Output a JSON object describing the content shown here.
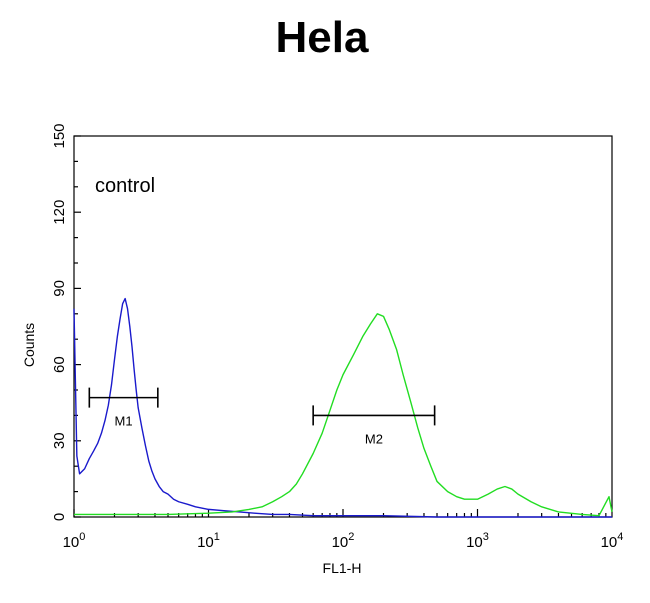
{
  "chart_data": {
    "type": "line",
    "title": "Hela",
    "xlabel": "FL1-H",
    "ylabel": "Counts",
    "x_scale": "log",
    "xlim": [
      1,
      10000
    ],
    "ylim": [
      0,
      150
    ],
    "x_ticks": [
      {
        "value": 1,
        "base": "10",
        "exp": "0"
      },
      {
        "value": 10,
        "base": "10",
        "exp": "1"
      },
      {
        "value": 100,
        "base": "10",
        "exp": "2"
      },
      {
        "value": 1000,
        "base": "10",
        "exp": "3"
      },
      {
        "value": 10000,
        "base": "10",
        "exp": "4"
      }
    ],
    "y_ticks": [
      "0",
      "30",
      "60",
      "90",
      "120",
      "150"
    ],
    "annotation": "control",
    "gates": [
      {
        "label": "M1",
        "x_start": 1.3,
        "x_end": 4.2,
        "y": 47
      },
      {
        "label": "M2",
        "x_start": 60,
        "x_end": 480,
        "y": 40
      }
    ],
    "series": [
      {
        "color": "#1a1acc",
        "x": [
          1.0,
          1.05,
          1.1,
          1.2,
          1.3,
          1.4,
          1.5,
          1.6,
          1.7,
          1.8,
          1.9,
          2.0,
          2.1,
          2.2,
          2.3,
          2.4,
          2.5,
          2.6,
          2.7,
          2.8,
          2.9,
          3.0,
          3.2,
          3.4,
          3.6,
          3.8,
          4.0,
          4.3,
          4.6,
          5.0,
          5.5,
          6.0,
          7.0,
          8.0,
          10.0,
          13.0,
          17.0,
          22.0,
          30.0,
          40.0,
          60.0,
          100.0,
          200.0,
          500.0,
          1000.0,
          3000.0,
          10000.0
        ],
        "y": [
          82,
          24,
          17,
          19,
          23,
          26,
          29,
          33,
          38,
          44,
          52,
          62,
          71,
          78,
          84,
          86,
          82,
          75,
          67,
          58,
          50,
          43,
          35,
          28,
          22,
          18,
          15,
          12,
          10,
          9,
          7,
          6,
          5,
          4,
          3,
          2.5,
          2,
          1.5,
          1,
          1,
          0.5,
          0.5,
          0.5,
          0,
          0,
          0,
          0
        ]
      },
      {
        "color": "#22dd22",
        "x": [
          1.0,
          2.0,
          5.0,
          10.0,
          15.0,
          20.0,
          25.0,
          30.0,
          35.0,
          40.0,
          45.0,
          50.0,
          60.0,
          70.0,
          80.0,
          90.0,
          100.0,
          120.0,
          140.0,
          160.0,
          180.0,
          200.0,
          220.0,
          250.0,
          280.0,
          320.0,
          360.0,
          400.0,
          450.0,
          500.0,
          600.0,
          700.0,
          800.0,
          1000.0,
          1200.0,
          1400.0,
          1600.0,
          1800.0,
          2000.0,
          2500.0,
          3000.0,
          4000.0,
          6000.0,
          8000.0,
          9500.0,
          10000.0
        ],
        "y": [
          1,
          1,
          1,
          1.5,
          2,
          3,
          4,
          6,
          8,
          10,
          13,
          17,
          25,
          33,
          42,
          50,
          56,
          64,
          71,
          76,
          80,
          79,
          74,
          66,
          56,
          45,
          35,
          27,
          20,
          14,
          10,
          8,
          7,
          7,
          9,
          11,
          12,
          11,
          9,
          6,
          4,
          2,
          1,
          0.5,
          8,
          2
        ]
      }
    ]
  }
}
